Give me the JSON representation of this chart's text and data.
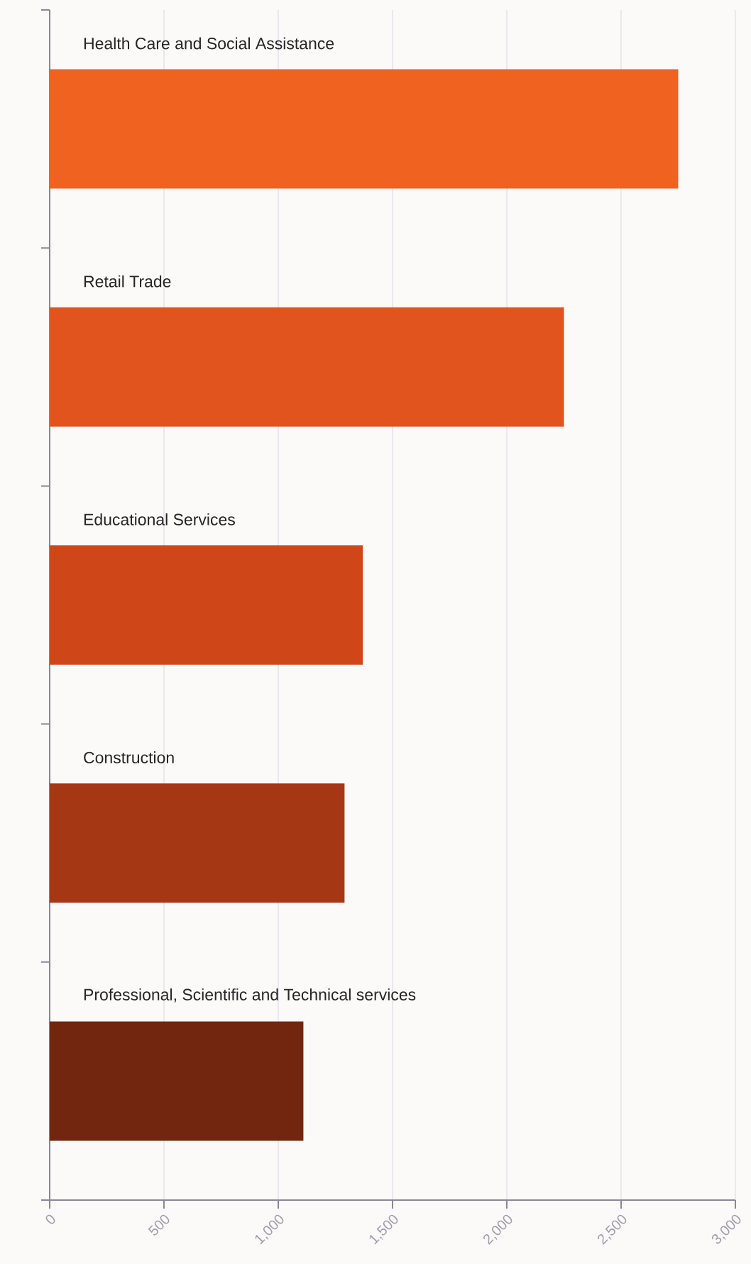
{
  "chart_data": {
    "type": "bar",
    "orientation": "horizontal",
    "categories": [
      "Health Care and Social Assistance",
      "Retail Trade",
      "Educational Services",
      "Construction",
      "Professional, Scientific and Technical services"
    ],
    "values": [
      2750,
      2250,
      1370,
      1290,
      1110
    ],
    "colors": [
      "#f0621f",
      "#e2541e",
      "#cf4719",
      "#a53714",
      "#73260f"
    ],
    "xlim": [
      0,
      3000
    ],
    "xticks": [
      0,
      {
        "value": 500,
        "label": "500"
      },
      {
        "value": 1000,
        "label": "1,000"
      },
      {
        "value": 1500,
        "label": "1,500"
      },
      {
        "value": 2000,
        "label": "2,000"
      },
      {
        "value": 2500,
        "label": "2,500"
      },
      {
        "value": 3000,
        "label": "3,000"
      }
    ],
    "grid": "x"
  }
}
